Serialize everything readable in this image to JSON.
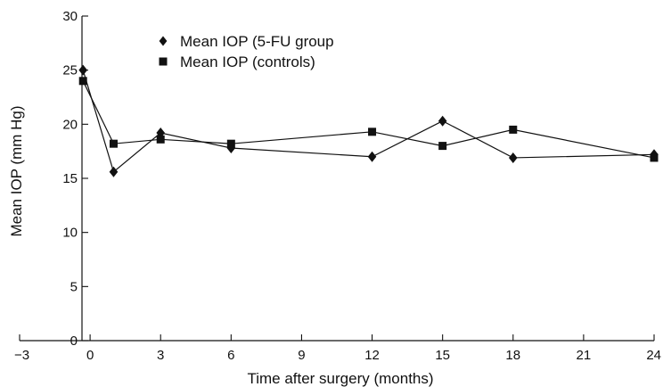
{
  "chart_data": {
    "type": "line",
    "title": "",
    "xlabel": "Time after surgery (months)",
    "ylabel": "Mean IOP (mm Hg)",
    "xlim": [
      -3,
      24
    ],
    "ylim": [
      0,
      30
    ],
    "xticks": [
      -3,
      0,
      3,
      6,
      9,
      12,
      15,
      18,
      21,
      24
    ],
    "yticks": [
      0,
      5,
      10,
      15,
      20,
      25,
      30
    ],
    "grid": false,
    "legend_position": "top-left",
    "series": [
      {
        "name": "Mean IOP (5-FU group",
        "marker": "diamond",
        "color": "#111111",
        "points": [
          {
            "x": -0.3,
            "y": 25.0
          },
          {
            "x": 1,
            "y": 15.6
          },
          {
            "x": 3,
            "y": 19.2
          },
          {
            "x": 6,
            "y": 17.8
          },
          {
            "x": 12,
            "y": 17.0
          },
          {
            "x": 15,
            "y": 20.3
          },
          {
            "x": 18,
            "y": 16.9
          },
          {
            "x": 24,
            "y": 17.2
          }
        ]
      },
      {
        "name": "Mean IOP (controls)",
        "marker": "square",
        "color": "#111111",
        "points": [
          {
            "x": -0.3,
            "y": 24.0
          },
          {
            "x": 1,
            "y": 18.2
          },
          {
            "x": 3,
            "y": 18.6
          },
          {
            "x": 6,
            "y": 18.2
          },
          {
            "x": 12,
            "y": 19.3
          },
          {
            "x": 15,
            "y": 18.0
          },
          {
            "x": 18,
            "y": 19.5
          },
          {
            "x": 24,
            "y": 16.9
          }
        ]
      }
    ]
  }
}
